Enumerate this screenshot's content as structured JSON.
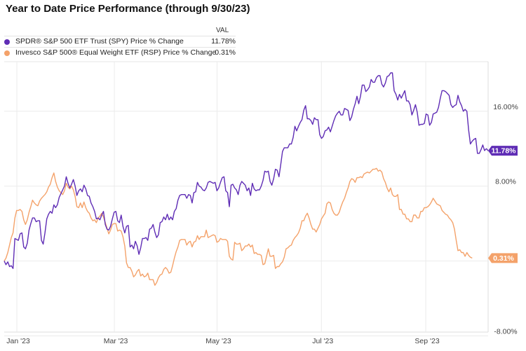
{
  "title": "Year to Date Price Performance (through 9/30/23)",
  "legend": {
    "header": "VAL",
    "items": [
      {
        "label": "SPDR® S&P 500 ETF Trust (SPY) Price % Change",
        "value": "11.78%",
        "color": "#5f2db5"
      },
      {
        "label": "Invesco S&P 500® Equal Weight ETF (RSP) Price % Change",
        "value": "0.31%",
        "color": "#f4a26a"
      }
    ]
  },
  "chart_data": {
    "type": "line",
    "x_ticks": [
      "Jan '23",
      "Mar '23",
      "May '23",
      "Jul '23",
      "Sep '23"
    ],
    "y_ticks": [
      "16.00%",
      "8.00%",
      "-8.00%"
    ],
    "ylim": [
      -7.6,
      21.3
    ],
    "grid": true,
    "end_labels": [
      "11.78%",
      "0.31%"
    ],
    "series": [
      {
        "name": "SPDR® S&P 500 ETF Trust (SPY) Price % Change",
        "color": "#5f2db5",
        "values": [
          0.0,
          -0.4,
          -0.1,
          -0.6,
          -0.5,
          -0.8,
          2.4,
          2.3,
          2.2,
          2.9,
          3.0,
          1.5,
          1.3,
          1.9,
          3.3,
          4.0,
          4.6,
          4.6,
          4.2,
          4.3,
          4.3,
          2.2,
          1.8,
          3.0,
          4.5,
          5.0,
          5.3,
          5.1,
          6.0,
          5.7,
          6.0,
          6.8,
          7.2,
          7.6,
          8.0,
          9.0,
          8.3,
          7.8,
          8.2,
          8.7,
          8.0,
          7.0,
          7.5,
          7.7,
          7.4,
          8.1,
          7.7,
          7.0,
          6.9,
          6.2,
          5.8,
          5.3,
          4.5,
          4.6,
          4.4,
          4.9,
          5.3,
          3.9,
          3.4,
          3.3,
          3.7,
          4.5,
          5.2,
          5.3,
          4.3,
          4.1,
          4.9,
          3.7,
          3.0,
          3.7,
          3.8,
          1.5,
          1.7,
          1.3,
          2.1,
          1.6,
          0.7,
          1.4,
          2.4,
          2.4,
          2.5,
          2.2,
          3.4,
          3.5,
          3.9,
          3.1,
          2.5,
          2.8,
          4.1,
          4.2,
          4.7,
          4.4,
          5.0,
          4.4,
          4.7,
          4.4,
          5.3,
          5.6,
          6.5,
          7.0,
          7.1,
          7.1,
          7.1,
          6.7,
          7.1,
          7.0,
          6.2,
          7.3,
          7.4,
          8.4,
          8.0,
          7.9,
          7.6,
          7.5,
          7.8,
          8.4,
          8.5,
          8.4,
          8.3,
          8.4,
          7.5,
          7.8,
          8.4,
          8.9,
          9.0,
          7.5,
          7.3,
          5.8,
          8.1,
          8.2,
          7.8,
          7.6,
          7.1,
          8.1,
          8.5,
          8.3,
          8.1,
          7.5,
          7.8,
          7.0,
          8.3,
          7.7,
          7.5,
          7.6,
          7.6,
          8.0,
          8.6,
          9.6,
          9.5,
          9.6,
          8.5,
          8.1,
          8.8,
          9.8,
          9.7,
          9.0,
          10.3,
          11.7,
          12.1,
          12.1,
          12.1,
          12.5,
          12.5,
          13.2,
          14.4,
          13.9,
          14.4,
          14.8,
          15.1,
          16.1,
          16.6,
          15.2,
          15.2,
          15.0,
          14.6,
          15.3,
          15.1,
          15.1,
          13.5,
          13.1,
          13.3,
          13.9,
          14.0,
          14.3,
          13.8,
          14.4,
          15.0,
          15.5,
          15.8,
          16.0,
          15.6,
          15.6,
          16.3,
          16.2,
          16.1,
          15.0,
          15.4,
          16.2,
          16.8,
          17.6,
          16.8,
          17.6,
          18.8,
          18.8,
          18.1,
          18.3,
          18.6,
          19.4,
          19.1,
          19.1,
          19.6,
          19.8,
          19.8,
          18.9,
          18.6,
          19.0,
          19.7,
          19.8,
          20.1,
          20.1,
          18.2,
          17.8,
          17.2,
          17.8,
          17.4,
          17.8,
          18.2,
          17.1,
          17.1,
          16.7,
          15.6,
          16.1,
          16.7,
          15.9,
          14.5,
          14.6,
          14.6,
          14.7,
          15.7,
          15.6,
          14.5,
          14.8,
          15.7,
          15.8,
          15.9,
          16.4,
          17.4,
          18.2,
          18.2,
          18.1,
          17.9,
          17.7,
          16.7,
          16.4,
          16.6,
          16.7,
          17.7,
          17.0,
          16.6,
          16.0,
          16.2,
          16.0,
          14.0,
          12.5,
          12.8,
          13.0,
          13.1,
          11.5,
          11.5,
          11.9,
          12.4,
          11.8,
          12.0,
          11.78
        ]
      },
      {
        "name": "Invesco S&P 500® Equal Weight ETF (RSP) Price % Change",
        "color": "#f4a26a",
        "values": [
          0.0,
          0.3,
          0.9,
          1.7,
          2.5,
          3.0,
          4.6,
          5.4,
          5.4,
          5.5,
          5.3,
          4.4,
          3.9,
          4.4,
          5.2,
          5.8,
          6.5,
          6.2,
          6.0,
          5.9,
          6.4,
          6.7,
          6.9,
          7.1,
          7.4,
          7.9,
          8.2,
          8.9,
          9.4,
          8.5,
          7.9,
          7.5,
          7.3,
          7.1,
          7.5,
          8.3,
          7.9,
          7.7,
          8.0,
          7.6,
          6.9,
          5.8,
          5.7,
          6.2,
          5.7,
          6.3,
          5.7,
          5.3,
          5.1,
          4.6,
          4.3,
          4.4,
          4.1,
          4.6,
          4.8,
          5.1,
          4.7,
          4.1,
          3.5,
          2.9,
          3.3,
          3.9,
          4.0,
          4.0,
          3.2,
          3.3,
          3.2,
          2.6,
          1.6,
          -0.2,
          -0.7,
          -0.7,
          -1.1,
          -1.7,
          -1.5,
          -1.1,
          -0.9,
          -1.6,
          -1.4,
          -1.7,
          -1.6,
          -1.3,
          -2.0,
          -2.0,
          -2.0,
          -2.6,
          -2.3,
          -1.8,
          -1.5,
          -1.4,
          -0.9,
          -0.7,
          -0.9,
          -1.3,
          -1.2,
          -0.5,
          0.3,
          1.0,
          1.5,
          2.2,
          2.3,
          2.3,
          2.3,
          1.7,
          2.0,
          2.1,
          1.5,
          2.0,
          2.1,
          2.7,
          2.3,
          2.6,
          2.6,
          2.6,
          3.3,
          2.5,
          2.6,
          2.7,
          2.8,
          2.7,
          2.0,
          2.1,
          2.4,
          2.3,
          2.3,
          2.3,
          2.1,
          0.5,
          0.2,
          0.1,
          2.0,
          1.8,
          1.8,
          1.9,
          1.1,
          1.3,
          1.6,
          1.6,
          1.8,
          1.5,
          1.7,
          0.8,
          0.9,
          0.7,
          0.7,
          0.6,
          -0.4,
          -0.3,
          0.5,
          1.3,
          0.5,
          0.5,
          0.6,
          -0.8,
          -0.6,
          -0.6,
          -0.3,
          -0.1,
          0.4,
          1.3,
          1.4,
          1.6,
          1.7,
          2.2,
          2.5,
          2.7,
          3.0,
          3.5,
          4.3,
          4.3,
          4.8,
          5.1,
          4.6,
          3.9,
          3.4,
          3.4,
          3.1,
          3.5,
          3.9,
          4.5,
          4.8,
          5.1,
          6.1,
          6.3,
          6.2,
          5.5,
          5.1,
          4.9,
          4.9,
          5.2,
          5.8,
          6.3,
          6.7,
          7.3,
          7.8,
          8.5,
          8.8,
          8.7,
          8.4,
          8.9,
          8.9,
          9.0,
          8.9,
          9.3,
          9.4,
          9.5,
          9.4,
          9.6,
          9.8,
          9.8,
          9.9,
          9.6,
          9.7,
          9.5,
          8.8,
          8.4,
          7.8,
          7.4,
          7.8,
          7.1,
          6.9,
          6.9,
          7.1,
          5.5,
          5.5,
          5.0,
          5.0,
          4.5,
          4.5,
          4.2,
          4.2,
          4.9,
          4.9,
          4.6,
          4.6,
          5.3,
          5.3,
          5.7,
          5.7,
          5.8,
          6.0,
          6.3,
          6.7,
          6.4,
          6.1,
          6.0,
          5.9,
          5.4,
          5.2,
          5.0,
          4.9,
          4.6,
          4.4,
          4.1,
          3.4,
          2.2,
          1.1,
          1.2,
          0.9,
          0.9,
          0.5,
          0.9,
          0.6,
          0.4,
          0.31
        ]
      }
    ]
  }
}
